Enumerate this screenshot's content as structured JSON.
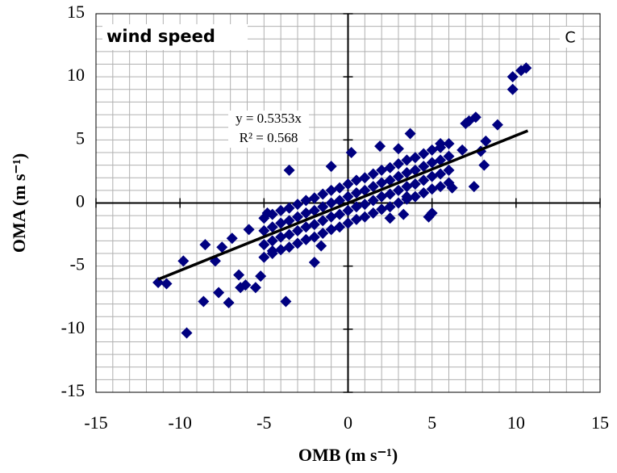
{
  "chart_data": {
    "type": "scatter",
    "panel_title": "wind speed",
    "panel_label": "C",
    "x_label": "OMB (m s⁻¹)",
    "y_label": "OMA (m s⁻¹)",
    "xlim": [
      -15,
      15
    ],
    "ylim": [
      -15,
      15
    ],
    "xticks": [
      -15,
      -10,
      -5,
      0,
      5,
      10,
      15
    ],
    "yticks": [
      -15,
      -10,
      -5,
      0,
      5,
      10,
      15
    ],
    "grid": true,
    "grid_step": 1,
    "color": "#000080",
    "trendline": {
      "equation": "y = 0.5353x",
      "r_squared_label": "R² = 0.568",
      "slope": 0.5353,
      "xrange": [
        -11.3,
        10.7
      ],
      "color": "#000000"
    },
    "x": [
      10.6,
      10.3,
      9.8,
      9.8,
      8.9,
      7.6,
      7.2,
      7.0,
      3.7,
      -9.6,
      -8.6,
      -7.7,
      -7.1,
      -3.7,
      -11.3,
      -10.8,
      -9.8,
      -6.4,
      -6.1,
      -5.5,
      -5.2,
      -6.5,
      -3.5,
      -2.0,
      8.2,
      7.9,
      8.1,
      5.5,
      6.8,
      4.8,
      3.3,
      2.5,
      -1.0,
      0.2,
      1.9,
      3.0,
      -1.6,
      -4.5,
      -4.8,
      -5.9,
      -8.5,
      -7.5,
      -6.9,
      -7.9,
      6.2,
      7.5,
      5.0,
      3.5,
      -5,
      -5,
      -5,
      -5,
      -4.5,
      -4.5,
      -4.5,
      -4.5,
      -4,
      -4,
      -4,
      -4,
      -3.5,
      -3.5,
      -3.5,
      -3.5,
      -3,
      -3,
      -3,
      -3,
      -2.5,
      -2.5,
      -2.5,
      -2.5,
      -2,
      -2,
      -2,
      -2,
      -1.5,
      -1.5,
      -1.5,
      -1.5,
      -1,
      -1,
      -1,
      -1,
      -0.5,
      -0.5,
      -0.5,
      -0.5,
      0,
      0,
      0,
      0,
      0.5,
      0.5,
      0.5,
      0.5,
      1,
      1,
      1,
      1,
      1.5,
      1.5,
      1.5,
      1.5,
      2,
      2,
      2,
      2,
      2.5,
      2.5,
      2.5,
      2.5,
      3,
      3,
      3,
      3,
      3.5,
      3.5,
      3.5,
      3.5,
      4,
      4,
      4,
      4,
      4.5,
      4.5,
      4.5,
      4.5,
      5,
      5,
      5,
      5,
      5.5,
      5.5,
      5.5,
      5.5,
      6,
      6,
      6,
      6
    ],
    "values": [
      10.7,
      10.5,
      10.0,
      9.0,
      6.2,
      6.8,
      6.5,
      6.3,
      5.5,
      -10.3,
      -7.8,
      -7.1,
      -7.9,
      -7.8,
      -6.3,
      -6.4,
      -4.6,
      -6.7,
      -6.5,
      -6.7,
      -5.8,
      -5.7,
      2.6,
      -4.7,
      4.9,
      4.1,
      3.0,
      4.7,
      4.2,
      -1.1,
      -0.9,
      -1.2,
      2.9,
      4.0,
      4.5,
      4.3,
      -3.4,
      -3.8,
      -0.8,
      -2.1,
      -3.3,
      -3.5,
      -2.8,
      -4.6,
      1.2,
      1.3,
      -0.8,
      0.5,
      -4.3,
      -3.3,
      -2.2,
      -1.2,
      -4.0,
      -3.0,
      -1.9,
      -0.9,
      -3.7,
      -2.7,
      -1.6,
      -0.6,
      -3.5,
      -2.5,
      -1.4,
      -0.4,
      -3.2,
      -2.2,
      -1.1,
      -0.1,
      -2.9,
      -1.9,
      -0.8,
      0.2,
      -2.7,
      -1.7,
      -0.6,
      0.4,
      -2.4,
      -1.4,
      -0.3,
      0.7,
      -2.1,
      -1.1,
      0.0,
      1.0,
      -1.9,
      -0.9,
      0.2,
      1.2,
      -1.6,
      -0.6,
      0.5,
      1.5,
      -1.3,
      -0.3,
      0.8,
      1.8,
      -1.1,
      -0.1,
      1.0,
      2.0,
      -0.8,
      0.2,
      1.3,
      2.3,
      -0.5,
      0.5,
      1.6,
      2.6,
      -0.3,
      0.7,
      1.8,
      2.8,
      0.0,
      1.0,
      2.1,
      3.1,
      0.3,
      1.3,
      2.4,
      3.4,
      0.5,
      1.5,
      2.6,
      3.6,
      0.8,
      1.8,
      2.9,
      3.9,
      1.1,
      2.1,
      3.2,
      4.2,
      1.3,
      2.3,
      3.4,
      4.4,
      1.6,
      2.6,
      3.7,
      4.7
    ]
  }
}
